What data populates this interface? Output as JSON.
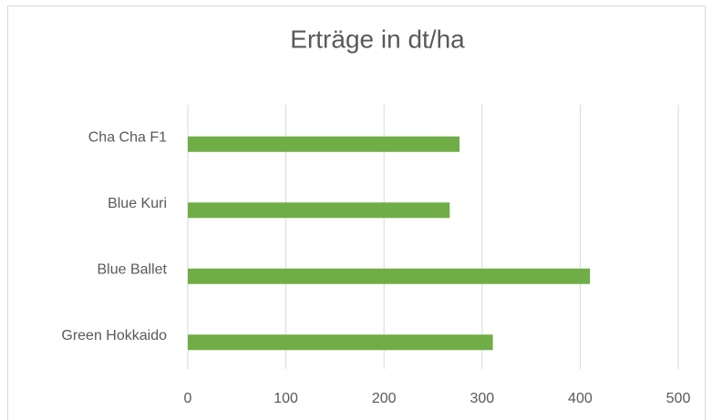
{
  "chart_data": {
    "type": "barh",
    "title": "Erträge in dt/ha",
    "categories": [
      "Cha Cha F1",
      "Blue Kuri",
      "Blue Ballet",
      "Green Hokkaido"
    ],
    "values": [
      277,
      267,
      410,
      311
    ],
    "color": "#70ad47",
    "xlim": [
      0,
      500
    ],
    "xticks": [
      0,
      100,
      200,
      300,
      400,
      500
    ],
    "grid": true
  }
}
